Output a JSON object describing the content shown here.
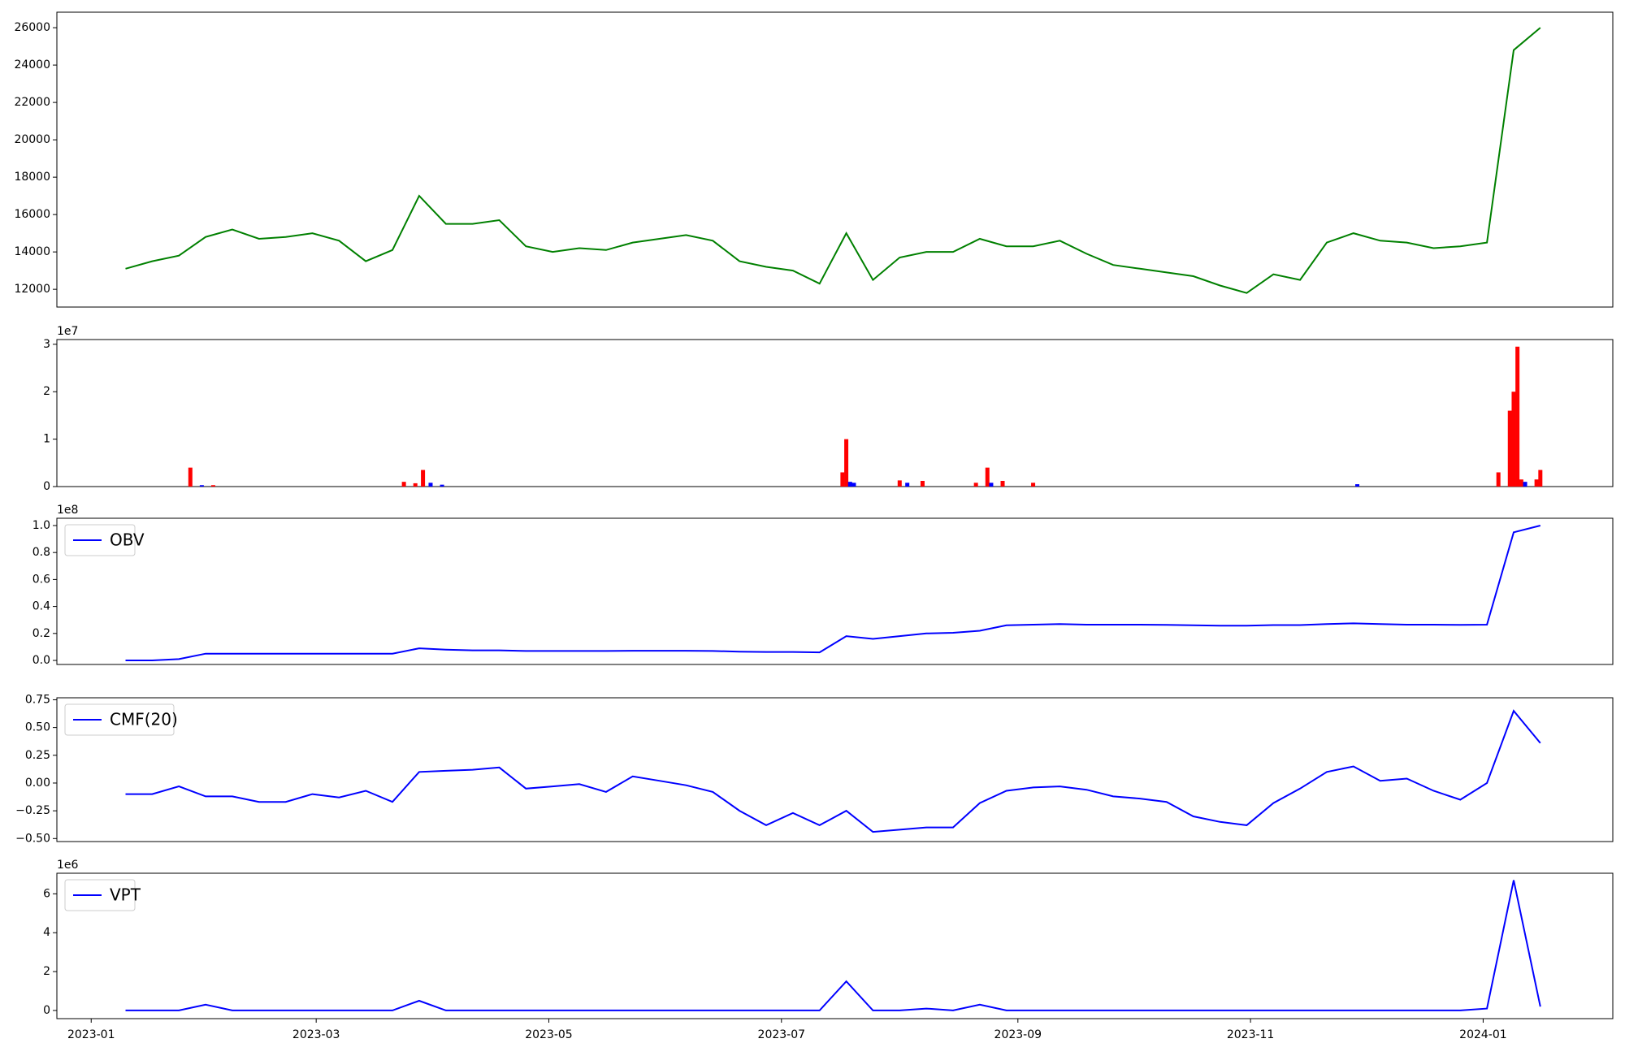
{
  "chart_data": [
    {
      "type": "line",
      "color": "#008000",
      "x": [
        "2023-01-10",
        "2023-01-17",
        "2023-01-24",
        "2023-01-31",
        "2023-02-07",
        "2023-02-14",
        "2023-02-21",
        "2023-02-28",
        "2023-03-07",
        "2023-03-14",
        "2023-03-21",
        "2023-03-28",
        "2023-04-04",
        "2023-04-11",
        "2023-04-18",
        "2023-04-25",
        "2023-05-02",
        "2023-05-09",
        "2023-05-16",
        "2023-05-23",
        "2023-05-30",
        "2023-06-06",
        "2023-06-13",
        "2023-06-20",
        "2023-06-27",
        "2023-07-04",
        "2023-07-11",
        "2023-07-18",
        "2023-07-25",
        "2023-08-01",
        "2023-08-08",
        "2023-08-15",
        "2023-08-22",
        "2023-08-29",
        "2023-09-05",
        "2023-09-12",
        "2023-09-19",
        "2023-09-26",
        "2023-10-03",
        "2023-10-10",
        "2023-10-17",
        "2023-10-24",
        "2023-10-31",
        "2023-11-07",
        "2023-11-14",
        "2023-11-21",
        "2023-11-28",
        "2023-12-05",
        "2023-12-12",
        "2023-12-19",
        "2023-12-26",
        "2024-01-02",
        "2024-01-09",
        "2024-01-16"
      ],
      "values": [
        13100,
        13500,
        13800,
        14800,
        15200,
        14700,
        14800,
        15000,
        14600,
        13500,
        14100,
        17000,
        15500,
        15500,
        15700,
        14300,
        14000,
        14200,
        14100,
        14500,
        14700,
        14900,
        14600,
        13500,
        13200,
        13000,
        12300,
        15000,
        12500,
        13700,
        14000,
        14000,
        14700,
        14300,
        14300,
        14600,
        13900,
        13300,
        13100,
        12900,
        12700,
        12200,
        11800,
        12800,
        12500,
        14500,
        15000,
        14600,
        14500,
        14200,
        14300,
        14500,
        24800,
        26000
      ],
      "xlim": [
        "2022-12-23",
        "2024-02-04"
      ],
      "ylim": [
        11050,
        26830
      ],
      "yticks": [
        12000,
        14000,
        16000,
        18000,
        20000,
        22000,
        24000,
        26000
      ]
    },
    {
      "type": "bar",
      "scale_label": "1e7",
      "x": [
        "2023-01-27",
        "2023-01-30",
        "2023-02-02",
        "2023-03-24",
        "2023-03-27",
        "2023-03-29",
        "2023-03-31",
        "2023-04-03",
        "2023-07-17",
        "2023-07-18",
        "2023-07-19",
        "2023-07-20",
        "2023-08-01",
        "2023-08-03",
        "2023-08-07",
        "2023-08-21",
        "2023-08-24",
        "2023-08-25",
        "2023-08-28",
        "2023-09-05",
        "2023-11-29",
        "2024-01-05",
        "2024-01-08",
        "2024-01-09",
        "2024-01-10",
        "2024-01-11",
        "2024-01-12",
        "2024-01-15",
        "2024-01-16"
      ],
      "values": [
        0.4,
        0.03,
        0.03,
        0.1,
        0.07,
        0.35,
        0.08,
        0.04,
        0.3,
        1.0,
        0.1,
        0.08,
        0.13,
        0.08,
        0.12,
        0.08,
        0.4,
        0.08,
        0.12,
        0.08,
        0.05,
        0.3,
        1.6,
        2.0,
        2.95,
        0.15,
        0.1,
        0.15,
        0.35
      ],
      "colors": [
        "#ff0000",
        "#0000ff",
        "#ff0000",
        "#ff0000",
        "#ff0000",
        "#ff0000",
        "#0000ff",
        "#0000ff",
        "#ff0000",
        "#ff0000",
        "#0000ff",
        "#0000ff",
        "#ff0000",
        "#0000ff",
        "#ff0000",
        "#ff0000",
        "#ff0000",
        "#0000ff",
        "#ff0000",
        "#ff0000",
        "#0000ff",
        "#ff0000",
        "#ff0000",
        "#ff0000",
        "#ff0000",
        "#ff0000",
        "#0000ff",
        "#ff0000",
        "#ff0000"
      ],
      "xlim": [
        "2022-12-23",
        "2024-02-04"
      ],
      "ylim": [
        0,
        3.1
      ],
      "yticks": [
        0,
        1,
        2,
        3
      ]
    },
    {
      "type": "line",
      "scale_label": "1e8",
      "legend": "upper left",
      "x": [
        "2023-01-10",
        "2023-01-17",
        "2023-01-24",
        "2023-01-31",
        "2023-02-07",
        "2023-02-14",
        "2023-02-21",
        "2023-02-28",
        "2023-03-07",
        "2023-03-14",
        "2023-03-21",
        "2023-03-28",
        "2023-04-04",
        "2023-04-11",
        "2023-04-18",
        "2023-04-25",
        "2023-05-02",
        "2023-05-09",
        "2023-05-16",
        "2023-05-23",
        "2023-05-30",
        "2023-06-06",
        "2023-06-13",
        "2023-06-20",
        "2023-06-27",
        "2023-07-04",
        "2023-07-11",
        "2023-07-18",
        "2023-07-25",
        "2023-08-01",
        "2023-08-08",
        "2023-08-15",
        "2023-08-22",
        "2023-08-29",
        "2023-09-05",
        "2023-09-12",
        "2023-09-19",
        "2023-09-26",
        "2023-10-03",
        "2023-10-10",
        "2023-10-17",
        "2023-10-24",
        "2023-10-31",
        "2023-11-07",
        "2023-11-14",
        "2023-11-21",
        "2023-11-28",
        "2023-12-05",
        "2023-12-12",
        "2023-12-19",
        "2023-12-26",
        "2024-01-02",
        "2024-01-09",
        "2024-01-16"
      ],
      "series": [
        {
          "name": "OBV",
          "color": "#0000ff",
          "values": [
            0.0,
            0.0,
            0.01,
            0.05,
            0.05,
            0.05,
            0.05,
            0.05,
            0.05,
            0.05,
            0.05,
            0.09,
            0.08,
            0.075,
            0.075,
            0.07,
            0.07,
            0.07,
            0.07,
            0.072,
            0.072,
            0.072,
            0.07,
            0.065,
            0.063,
            0.063,
            0.06,
            0.18,
            0.16,
            0.18,
            0.2,
            0.205,
            0.22,
            0.26,
            0.265,
            0.27,
            0.265,
            0.265,
            0.265,
            0.263,
            0.26,
            0.258,
            0.258,
            0.262,
            0.262,
            0.27,
            0.275,
            0.27,
            0.265,
            0.265,
            0.263,
            0.265,
            0.95,
            1.0
          ]
        }
      ],
      "xlim": [
        "2022-12-23",
        "2024-02-04"
      ],
      "ylim": [
        -0.03,
        1.054
      ],
      "yticks": [
        {
          "value": 0,
          "label": "0.0"
        },
        {
          "value": 0.2,
          "label": "0.2"
        },
        {
          "value": 0.4,
          "label": "0.4"
        },
        {
          "value": 0.6,
          "label": "0.6"
        },
        {
          "value": 0.8,
          "label": "0.8"
        },
        {
          "value": 1,
          "label": "1.0"
        }
      ]
    },
    {
      "type": "line",
      "legend": "upper left",
      "x": [
        "2023-01-10",
        "2023-01-17",
        "2023-01-24",
        "2023-01-31",
        "2023-02-07",
        "2023-02-14",
        "2023-02-21",
        "2023-02-28",
        "2023-03-07",
        "2023-03-14",
        "2023-03-21",
        "2023-03-28",
        "2023-04-04",
        "2023-04-11",
        "2023-04-18",
        "2023-04-25",
        "2023-05-02",
        "2023-05-09",
        "2023-05-16",
        "2023-05-23",
        "2023-05-30",
        "2023-06-06",
        "2023-06-13",
        "2023-06-20",
        "2023-06-27",
        "2023-07-04",
        "2023-07-11",
        "2023-07-18",
        "2023-07-25",
        "2023-08-01",
        "2023-08-08",
        "2023-08-15",
        "2023-08-22",
        "2023-08-29",
        "2023-09-05",
        "2023-09-12",
        "2023-09-19",
        "2023-09-26",
        "2023-10-03",
        "2023-10-10",
        "2023-10-17",
        "2023-10-24",
        "2023-10-31",
        "2023-11-07",
        "2023-11-14",
        "2023-11-21",
        "2023-11-28",
        "2023-12-05",
        "2023-12-12",
        "2023-12-19",
        "2023-12-26",
        "2024-01-02",
        "2024-01-09",
        "2024-01-16"
      ],
      "series": [
        {
          "name": "CMF(20)",
          "color": "#0000ff",
          "values": [
            -0.1,
            -0.1,
            -0.03,
            -0.12,
            -0.12,
            -0.17,
            -0.17,
            -0.1,
            -0.13,
            -0.07,
            -0.17,
            0.1,
            0.11,
            0.12,
            0.14,
            -0.05,
            -0.03,
            -0.01,
            -0.08,
            0.06,
            0.02,
            -0.02,
            -0.08,
            -0.25,
            -0.38,
            -0.27,
            -0.38,
            -0.25,
            -0.44,
            -0.42,
            -0.4,
            -0.4,
            -0.18,
            -0.07,
            -0.04,
            -0.03,
            -0.06,
            -0.12,
            -0.14,
            -0.17,
            -0.3,
            -0.35,
            -0.38,
            -0.18,
            -0.05,
            0.1,
            0.15,
            0.02,
            0.04,
            -0.07,
            -0.15,
            0.0,
            0.65,
            0.36
          ]
        }
      ],
      "xlim": [
        "2022-12-23",
        "2024-02-04"
      ],
      "ylim": [
        -0.527,
        0.768
      ],
      "yticks": [
        {
          "value": -0.5,
          "label": "−0.50"
        },
        {
          "value": -0.25,
          "label": "−0.25"
        },
        {
          "value": 0,
          "label": "0.00"
        },
        {
          "value": 0.25,
          "label": "0.25"
        },
        {
          "value": 0.5,
          "label": "0.50"
        },
        {
          "value": 0.75,
          "label": "0.75"
        }
      ]
    },
    {
      "type": "line",
      "scale_label": "1e6",
      "legend": "upper left",
      "x": [
        "2023-01-10",
        "2023-01-17",
        "2023-01-24",
        "2023-01-31",
        "2023-02-07",
        "2023-02-14",
        "2023-02-21",
        "2023-02-28",
        "2023-03-07",
        "2023-03-14",
        "2023-03-21",
        "2023-03-28",
        "2023-04-04",
        "2023-04-11",
        "2023-04-18",
        "2023-04-25",
        "2023-05-02",
        "2023-05-09",
        "2023-05-16",
        "2023-05-23",
        "2023-05-30",
        "2023-06-06",
        "2023-06-13",
        "2023-06-20",
        "2023-06-27",
        "2023-07-04",
        "2023-07-11",
        "2023-07-18",
        "2023-07-25",
        "2023-08-01",
        "2023-08-08",
        "2023-08-15",
        "2023-08-22",
        "2023-08-29",
        "2023-09-05",
        "2023-09-12",
        "2023-09-19",
        "2023-09-26",
        "2023-10-03",
        "2023-10-10",
        "2023-10-17",
        "2023-10-24",
        "2023-10-31",
        "2023-11-07",
        "2023-11-14",
        "2023-11-21",
        "2023-11-28",
        "2023-12-05",
        "2023-12-12",
        "2023-12-19",
        "2023-12-26",
        "2024-01-02",
        "2024-01-09",
        "2024-01-16"
      ],
      "series": [
        {
          "name": "VPT",
          "color": "#0000ff",
          "values": [
            0,
            0,
            0,
            0.3,
            0,
            0,
            0,
            0,
            0,
            0,
            0,
            0.5,
            0,
            0,
            0,
            0,
            0,
            0,
            0,
            0,
            0,
            0,
            0,
            0,
            0,
            0,
            0,
            1.5,
            0,
            0,
            0.1,
            0,
            0.3,
            0,
            0,
            0,
            0,
            0,
            0,
            0,
            0,
            0,
            0,
            0,
            0,
            0,
            0,
            0,
            0,
            0,
            0,
            0.1,
            6.7,
            0.2
          ]
        }
      ],
      "xlim": [
        "2022-12-23",
        "2024-02-04"
      ],
      "ylim": [
        -0.42,
        7.06
      ],
      "yticks": [
        0,
        2,
        4,
        6
      ],
      "xticks": [
        "2023-01",
        "2023-03",
        "2023-05",
        "2023-07",
        "2023-09",
        "2023-11",
        "2024-01"
      ]
    }
  ]
}
